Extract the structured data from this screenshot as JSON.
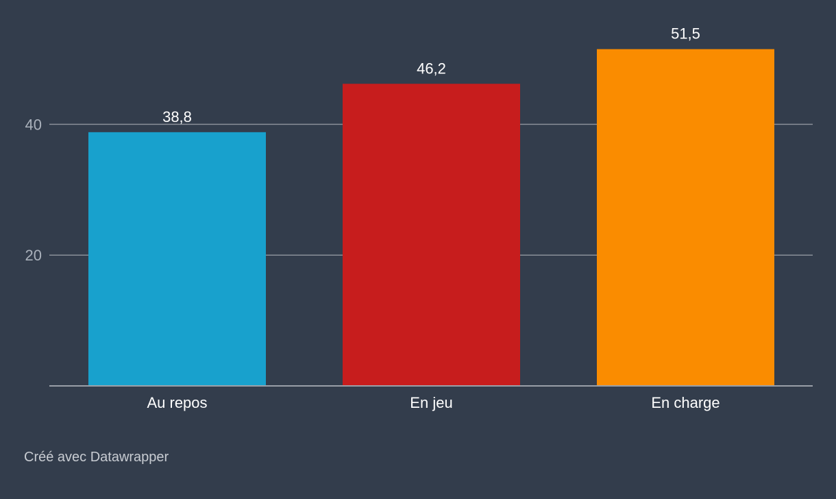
{
  "chart_data": {
    "type": "bar",
    "categories": [
      "Au repos",
      "En jeu",
      "En charge"
    ],
    "values": [
      38.8,
      46.2,
      51.5
    ],
    "value_labels": [
      "38,8",
      "46,2",
      "51,5"
    ],
    "colors": [
      "#18a1cd",
      "#c71d1d",
      "#fa8c00"
    ],
    "yticks": [
      20,
      40
    ],
    "ylim": [
      0,
      52
    ],
    "grid": true,
    "title": "",
    "xlabel": "",
    "ylabel": ""
  },
  "footer": {
    "credit": "Créé avec Datawrapper"
  },
  "style": {
    "background": "#333d4c",
    "grid_color": "#8a9099",
    "axis_color": "#9aa0a8"
  }
}
